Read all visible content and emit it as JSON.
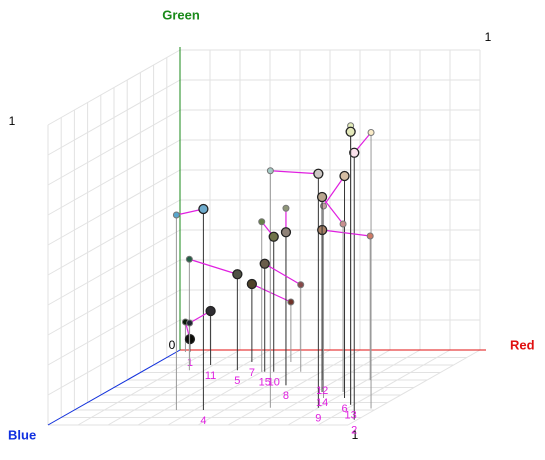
{
  "chart_data": {
    "type": "scatter3d",
    "x_label": "Red",
    "y_label": "Green",
    "z_label": "Blue",
    "xlim": [
      0,
      1
    ],
    "ylim": [
      0,
      1
    ],
    "zlim": [
      0,
      1
    ],
    "pairs": [
      {
        "label": "1",
        "from": [
          0.045,
          0.043,
          0.027
        ],
        "to": [
          0.03,
          0.1,
          0.027
        ]
      },
      {
        "label": "2",
        "from": [
          0.99,
          0.89,
          0.93
        ],
        "to": [
          0.98,
          0.92,
          0.78
        ]
      },
      {
        "label": "4",
        "from": [
          0.43,
          0.67,
          0.8
        ],
        "to": [
          0.34,
          0.65,
          0.8
        ]
      },
      {
        "label": "5",
        "from": [
          0.31,
          0.32,
          0.27
        ],
        "to": [
          0.15,
          0.37,
          0.27
        ]
      },
      {
        "label": "6",
        "from": [
          0.83,
          0.74,
          0.64
        ],
        "to": [
          0.76,
          0.64,
          0.64
        ]
      },
      {
        "label": "7",
        "from": [
          0.31,
          0.26,
          0.16
        ],
        "to": [
          0.44,
          0.2,
          0.16
        ]
      },
      {
        "label": "8",
        "from": [
          0.56,
          0.51,
          0.47
        ],
        "to": [
          0.56,
          0.59,
          0.47
        ]
      },
      {
        "label": "9",
        "from": [
          0.8,
          0.78,
          0.77
        ],
        "to": [
          0.64,
          0.79,
          0.77
        ]
      },
      {
        "label": "10",
        "from": [
          0.44,
          0.45,
          0.29
        ],
        "to": [
          0.4,
          0.5,
          0.29
        ]
      },
      {
        "label": "11",
        "from": [
          0.19,
          0.18,
          0.2
        ],
        "to": [
          0.12,
          0.14,
          0.2
        ]
      },
      {
        "label": "12",
        "from": [
          0.65,
          0.5,
          0.4
        ],
        "to": [
          0.81,
          0.48,
          0.4
        ]
      },
      {
        "label": "13",
        "from": [
          0.89,
          0.91,
          0.73
        ],
        "to": [
          0.89,
          0.93,
          0.73
        ]
      },
      {
        "label": "14",
        "from": [
          0.72,
          0.65,
          0.56
        ],
        "to": [
          0.79,
          0.56,
          0.56
        ]
      },
      {
        "label": "15",
        "from": [
          0.41,
          0.36,
          0.29
        ],
        "to": [
          0.53,
          0.29,
          0.29
        ]
      }
    ]
  }
}
